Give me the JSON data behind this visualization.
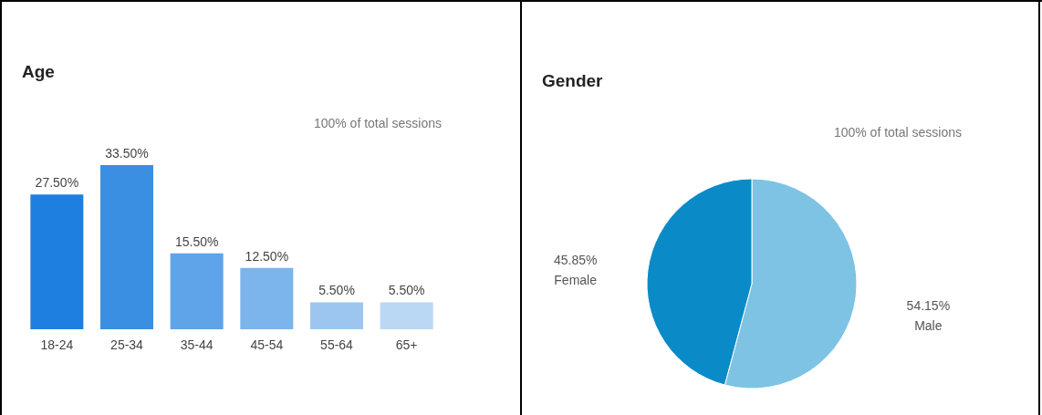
{
  "chart_data": [
    {
      "type": "bar",
      "title": "Age",
      "subtitle": "100% of total sessions",
      "categories": [
        "18-24",
        "25-34",
        "35-44",
        "45-54",
        "55-64",
        "65+"
      ],
      "values": [
        27.5,
        33.5,
        15.5,
        12.5,
        5.5,
        5.5
      ],
      "value_labels": [
        "27.50%",
        "33.50%",
        "15.50%",
        "12.50%",
        "5.50%",
        "5.50%"
      ],
      "colors": [
        "#1f7fe0",
        "#3b8fe2",
        "#5fa3e8",
        "#7cb4ec",
        "#9cc6f0",
        "#bad7f4"
      ],
      "grid": false
    },
    {
      "type": "pie",
      "title": "Gender",
      "subtitle": "100% of total sessions",
      "categories": [
        "Male",
        "Female"
      ],
      "values": [
        54.15,
        45.85
      ],
      "value_labels": [
        "54.15%",
        "45.85%"
      ],
      "colors": [
        "#7ec3e3",
        "#0a8bc8"
      ]
    }
  ]
}
